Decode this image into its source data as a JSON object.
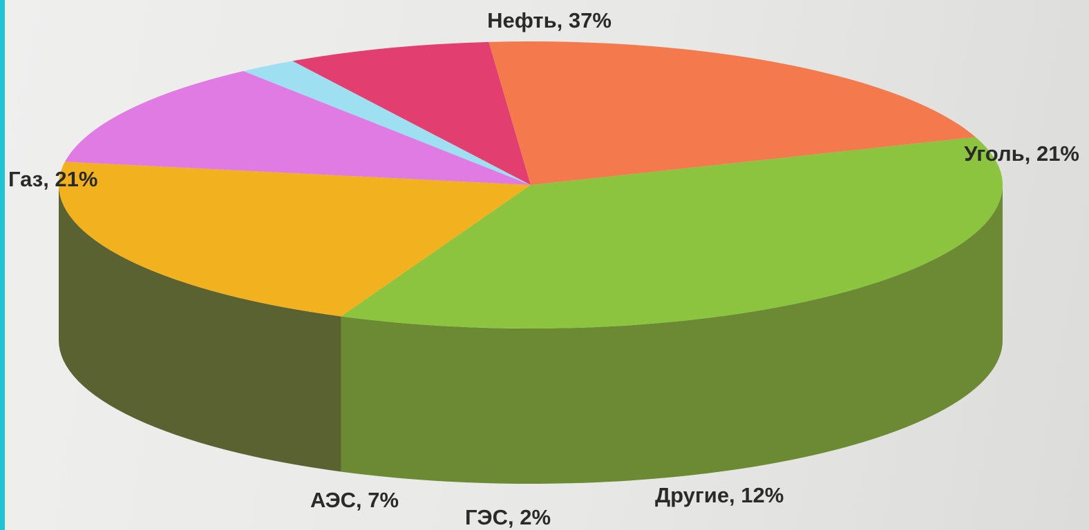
{
  "chart_data": {
    "type": "pie",
    "style": "3d",
    "title": "",
    "slices": [
      {
        "label": "Нефть",
        "value": 37,
        "text": "Нефть, 37%",
        "color": "#8cc43f",
        "side_color": "#6b8a33"
      },
      {
        "label": "Уголь",
        "value": 21,
        "text": "Уголь, 21%",
        "color": "#f2b21f",
        "side_color": "#5a6231"
      },
      {
        "label": "Другие",
        "value": 12,
        "text": "Другие, 12%",
        "color": "#e07be3",
        "side_color": "#4f3775"
      },
      {
        "label": "ГЭС",
        "value": 2,
        "text": "ГЭС, 2%",
        "color": "#9fdff2",
        "side_color": "#1f6f8e"
      },
      {
        "label": "АЭС",
        "value": 7,
        "text": "АЭС, 7%",
        "color": "#e23e70",
        "side_color": "#882a57"
      },
      {
        "label": "Газ",
        "value": 21,
        "text": "Газ, 21%",
        "color": "#f47a4e",
        "side_color": "#6a3b3b"
      }
    ],
    "legend": "none"
  }
}
